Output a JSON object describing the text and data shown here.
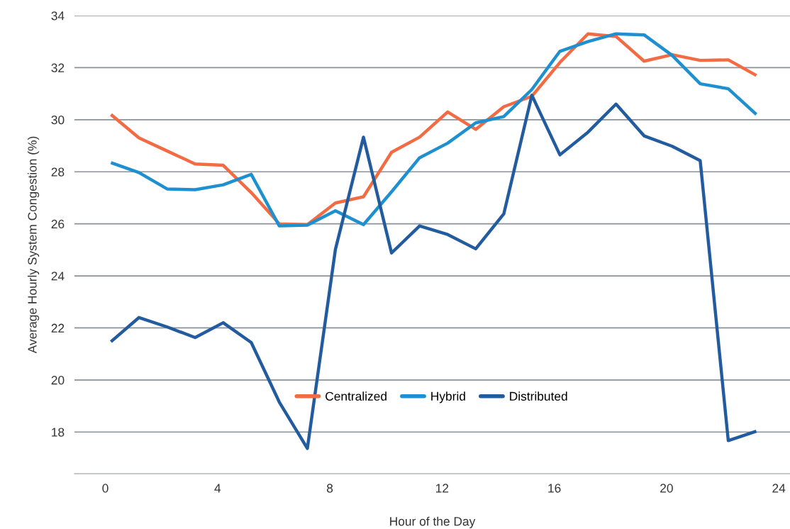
{
  "chart_data": {
    "type": "line",
    "xlabel": "Hour of the Day",
    "ylabel": "Average Hourly System Congestion (%)",
    "x": [
      0.2,
      1.2,
      2.2,
      3.2,
      4.2,
      5.2,
      6.2,
      7.2,
      8.2,
      9.2,
      10.2,
      11.2,
      12.2,
      13.2,
      14.2,
      15.2,
      16.2,
      17.2,
      18.2,
      19.2,
      20.2,
      21.2,
      22.2,
      23.2
    ],
    "series": [
      {
        "name": "Centralized",
        "color": "#f26b43",
        "values": [
          30.2,
          29.3,
          28.8,
          28.3,
          28.25,
          27.2,
          26.0,
          25.97,
          26.8,
          27.04,
          28.75,
          29.33,
          30.3,
          29.63,
          30.5,
          30.9,
          32.2,
          33.3,
          33.2,
          32.25,
          32.5,
          32.28,
          32.3,
          31.7
        ]
      },
      {
        "name": "Hybrid",
        "color": "#1e90d0",
        "values": [
          28.35,
          27.97,
          27.34,
          27.31,
          27.5,
          27.9,
          25.92,
          25.95,
          26.5,
          25.97,
          27.23,
          28.54,
          29.1,
          29.88,
          30.12,
          31.16,
          32.63,
          33.0,
          33.3,
          33.26,
          32.47,
          31.38,
          31.19,
          30.2
        ]
      },
      {
        "name": "Distributed",
        "color": "#235c9e",
        "values": [
          21.47,
          22.4,
          22.04,
          21.63,
          22.2,
          21.44,
          19.15,
          17.37,
          25.02,
          29.33,
          24.88,
          25.92,
          25.59,
          25.04,
          26.38,
          30.94,
          28.65,
          29.52,
          30.6,
          29.38,
          28.98,
          28.43,
          17.67,
          18.03
        ]
      }
    ],
    "xlim": [
      -1.1,
      24.4
    ],
    "ylim": [
      16.4,
      34
    ],
    "xticks": [
      0,
      4,
      8,
      12,
      16,
      20,
      24
    ],
    "yticks": [
      18,
      20,
      22,
      24,
      26,
      28,
      30,
      32,
      34
    ],
    "grid": "y",
    "legend": "bottom",
    "marker": "none",
    "line_style": "solid"
  }
}
